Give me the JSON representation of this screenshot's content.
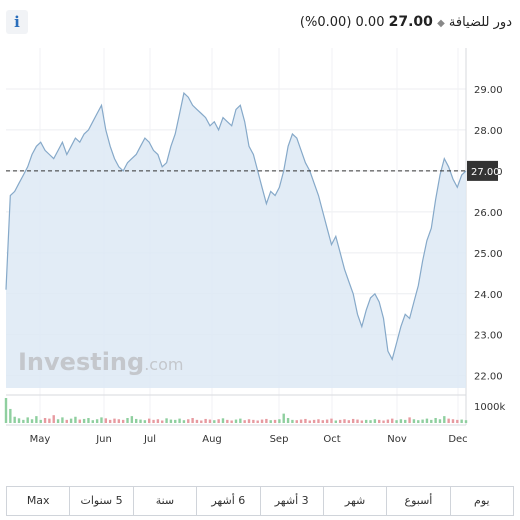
{
  "header": {
    "name": "دور للضيافة",
    "price": "27.00",
    "change": "0.00",
    "change_pct": "(0.00%)",
    "info_label": "i"
  },
  "watermark": {
    "brand": "Investing",
    "suffix": ".com"
  },
  "chart_data": {
    "type": "area",
    "y_ticks": [
      "29.00",
      "28.00",
      "27.00",
      "26.00",
      "25.00",
      "24.00",
      "23.00",
      "22.00"
    ],
    "ylim": [
      21.7,
      30.0
    ],
    "x_ticks": [
      "May",
      "Jun",
      "Jul",
      "Aug",
      "Sep",
      "Oct",
      "Nov",
      "Dec"
    ],
    "current_price": 27.0,
    "current_label": "27.00",
    "volume_label": "1000k",
    "grid": true,
    "colors": {
      "line": "#86a9c9",
      "fill": "#dde9f4",
      "last_price_box": "#333333"
    },
    "series": [
      {
        "values": [
          24.1,
          26.4,
          26.5,
          26.7,
          26.9,
          27.1,
          27.4,
          27.6,
          27.7,
          27.5,
          27.4,
          27.3,
          27.5,
          27.7,
          27.4,
          27.6,
          27.8,
          27.7,
          27.9,
          28.0,
          28.2,
          28.4,
          28.6,
          28.0,
          27.6,
          27.3,
          27.1,
          27.0,
          27.2,
          27.3,
          27.4,
          27.6,
          27.8,
          27.7,
          27.5,
          27.4,
          27.1,
          27.2,
          27.6,
          27.9,
          28.4,
          28.9,
          28.8,
          28.6,
          28.5,
          28.4,
          28.3,
          28.1,
          28.2,
          28.0,
          28.3,
          28.2,
          28.1,
          28.5,
          28.6,
          28.2,
          27.6,
          27.4,
          27.0,
          26.6,
          26.2,
          26.5,
          26.4,
          26.6,
          27.0,
          27.6,
          27.9,
          27.8,
          27.5,
          27.2,
          27.0,
          26.7,
          26.4,
          26.0,
          25.6,
          25.2,
          25.4,
          25.0,
          24.6,
          24.3,
          24.0,
          23.5,
          23.2,
          23.6,
          23.9,
          24.0,
          23.8,
          23.4,
          22.6,
          22.4,
          22.8,
          23.2,
          23.5,
          23.4,
          23.8,
          24.2,
          24.8,
          25.3,
          25.6,
          26.3,
          26.9,
          27.3,
          27.1,
          26.8,
          26.6,
          26.9,
          27.0
        ]
      }
    ],
    "volume": [
      80,
      45,
      20,
      15,
      10,
      18,
      12,
      22,
      10,
      16,
      14,
      25,
      12,
      18,
      10,
      14,
      20,
      11,
      13,
      16,
      9,
      12,
      18,
      15,
      10,
      14,
      12,
      10,
      16,
      22,
      13,
      11,
      9,
      14,
      10,
      12,
      8,
      15,
      11,
      10,
      14,
      9,
      12,
      16,
      10,
      8,
      13,
      11,
      9,
      12,
      15,
      10,
      8,
      11,
      14,
      9,
      12,
      10,
      8,
      11,
      13,
      9,
      10,
      12,
      30,
      16,
      10,
      9,
      11,
      13,
      8,
      10,
      12,
      9,
      11,
      14,
      8,
      10,
      12,
      9,
      13,
      11,
      8,
      10,
      9,
      12,
      10,
      8,
      11,
      14,
      9,
      12,
      10,
      18,
      12,
      9,
      11,
      14,
      10,
      16,
      12,
      22,
      14,
      12,
      10,
      11,
      9
    ]
  },
  "tabs": [
    "يوم",
    "أسبوع",
    "شهر",
    "3 أشهر",
    "6 أشهر",
    "سنة",
    "5 سنوات",
    "Max"
  ]
}
